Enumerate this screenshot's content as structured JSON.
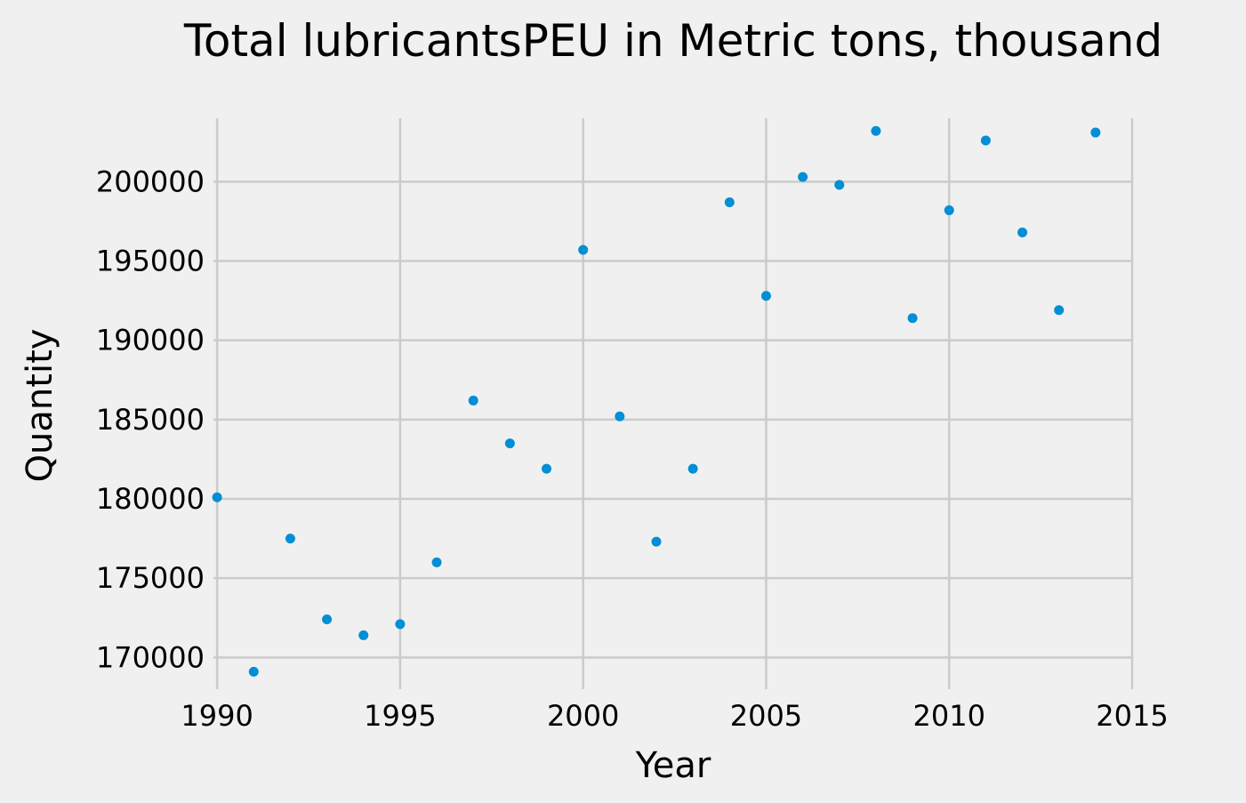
{
  "chart_data": {
    "type": "scatter",
    "title": "Total lubricantsPEU in Metric tons,  thousand",
    "xlabel": "Year",
    "ylabel": "Quantity",
    "xlim": [
      1989.9,
      2015
    ],
    "ylim": [
      168000,
      204000
    ],
    "xticks": [
      1990,
      1995,
      2000,
      2005,
      2010,
      2015
    ],
    "yticks": [
      170000,
      175000,
      180000,
      185000,
      190000,
      195000,
      200000
    ],
    "grid": true,
    "point_color": "#008fd5",
    "background": "#f0f0f0",
    "grid_color": "#cbcbcb",
    "x": [
      1990,
      1991,
      1992,
      1993,
      1994,
      1995,
      1996,
      1997,
      1998,
      1999,
      2000,
      2001,
      2002,
      2003,
      2004,
      2005,
      2006,
      2007,
      2008,
      2009,
      2010,
      2011,
      2012,
      2013,
      2014
    ],
    "y": [
      180100,
      169100,
      177500,
      172400,
      171400,
      172100,
      176000,
      186200,
      183500,
      181900,
      195700,
      185200,
      177300,
      181900,
      198700,
      192800,
      200300,
      199800,
      203200,
      191400,
      198200,
      202600,
      196800,
      191900,
      203100
    ]
  }
}
